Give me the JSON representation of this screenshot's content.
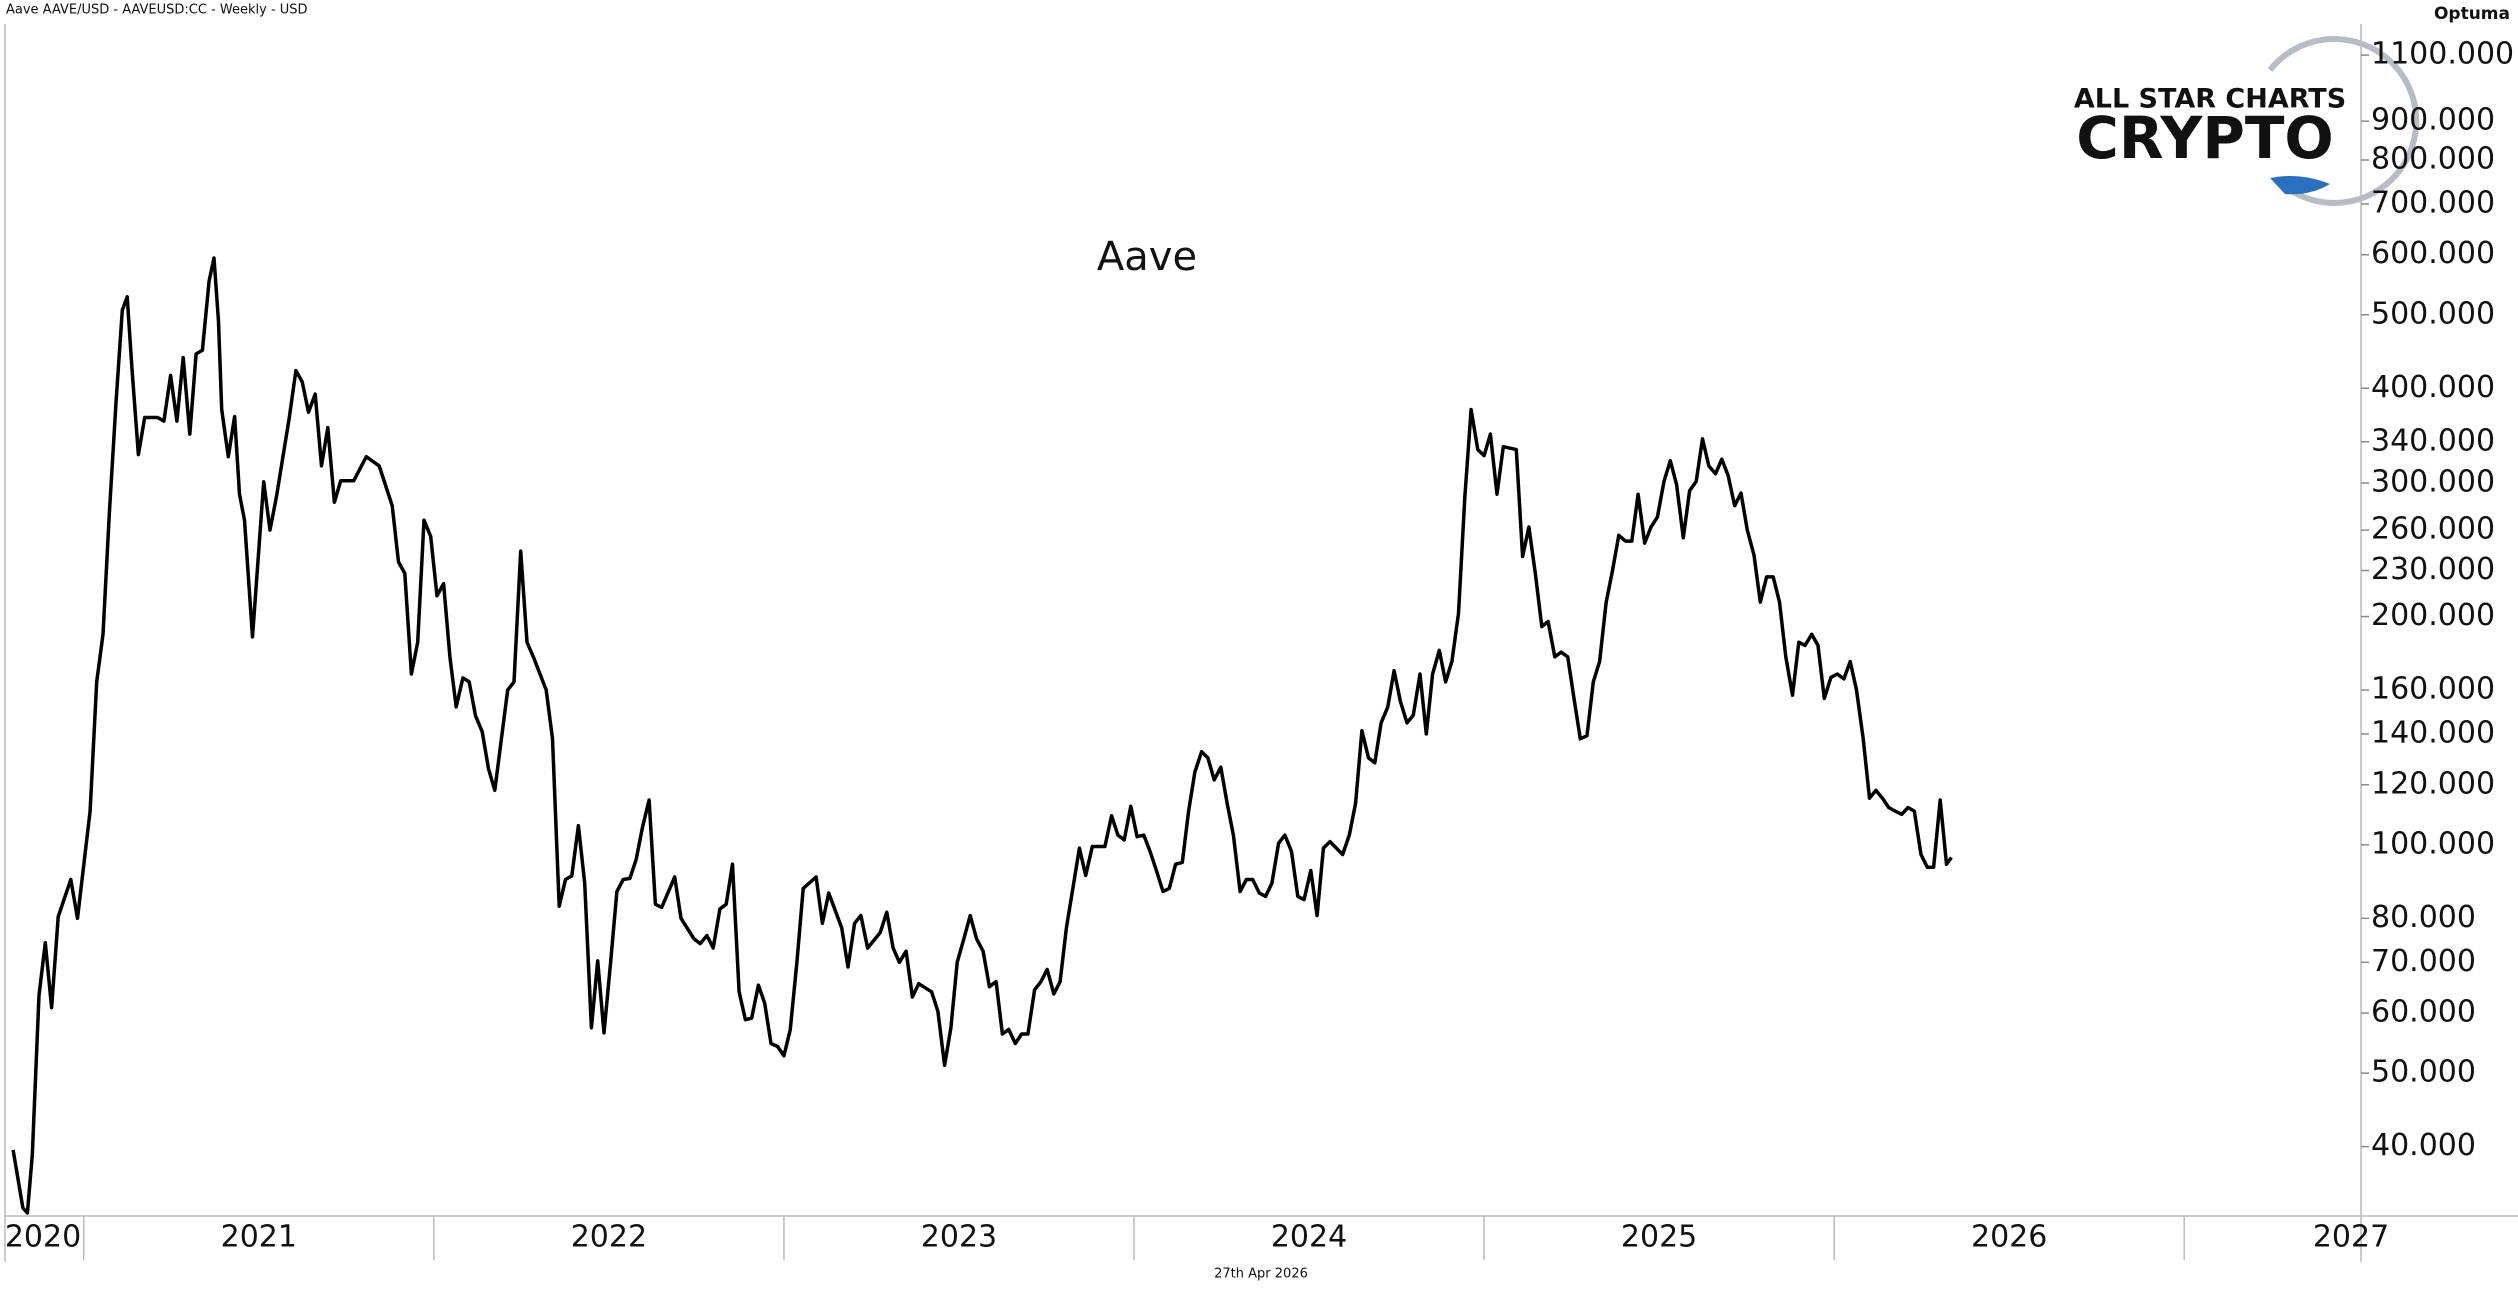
{
  "header": {
    "caption": "Aave AAVE/USD - AAVEUSD:CC - Weekly - USD",
    "brand": "Optuma",
    "date": "27th Apr 2026"
  },
  "logo": {
    "line1": "ALL STAR CHARTS",
    "line2": "CRYPTO"
  },
  "chart_data": {
    "type": "line",
    "title": "Aave",
    "color": "#000000",
    "log_scale": true,
    "xlim": [
      2020.775,
      2027.505
    ],
    "xticks": [
      2020,
      2021,
      2022,
      2023,
      2024,
      2025,
      2026,
      2027
    ],
    "ylim": [
      32.4,
      1209
    ],
    "yticks": [
      {
        "value": 40,
        "label": "40.000"
      },
      {
        "value": 50,
        "label": "50.000"
      },
      {
        "value": 60,
        "label": "60.000"
      },
      {
        "value": 70,
        "label": "70.000"
      },
      {
        "value": 80,
        "label": "80.000"
      },
      {
        "value": 100,
        "label": "100.000"
      },
      {
        "value": 120,
        "label": "120.000"
      },
      {
        "value": 140,
        "label": "140.000"
      },
      {
        "value": 160,
        "label": "160.000"
      },
      {
        "value": 200,
        "label": "200.000"
      },
      {
        "value": 230,
        "label": "230.000"
      },
      {
        "value": 260,
        "label": "260.000"
      },
      {
        "value": 300,
        "label": "300.000"
      },
      {
        "value": 340,
        "label": "340.000"
      },
      {
        "value": 400,
        "label": "400.000"
      },
      {
        "value": 500,
        "label": "500.000"
      },
      {
        "value": 600,
        "label": "600.000"
      },
      {
        "value": 700,
        "label": "700.000"
      },
      {
        "value": 800,
        "label": "800.000"
      },
      {
        "value": 900,
        "label": "900.000"
      },
      {
        "value": 1100,
        "label": "1100.000"
      }
    ],
    "x": [
      2020.798,
      2020.826,
      2020.839,
      2020.853,
      2020.872,
      2020.89,
      2020.908,
      2020.927,
      2020.963,
      2020.982,
      2021.018,
      2021.037,
      2021.055,
      2021.073,
      2021.092,
      2021.11,
      2021.124,
      2021.138,
      2021.156,
      2021.174,
      2021.211,
      2021.229,
      2021.248,
      2021.266,
      2021.284,
      2021.303,
      2021.321,
      2021.339,
      2021.358,
      2021.372,
      2021.385,
      2021.394,
      2021.413,
      2021.431,
      2021.445,
      2021.459,
      2021.482,
      2021.514,
      2021.532,
      2021.55,
      2021.587,
      2021.606,
      2021.624,
      2021.642,
      2021.661,
      2021.679,
      2021.697,
      2021.716,
      2021.734,
      2021.771,
      2021.807,
      2021.844,
      2021.881,
      2021.899,
      2021.917,
      2021.936,
      2021.954,
      2021.972,
      2021.991,
      2022.009,
      2022.028,
      2022.046,
      2022.064,
      2022.083,
      2022.101,
      2022.119,
      2022.138,
      2022.156,
      2022.174,
      2022.193,
      2022.211,
      2022.229,
      2022.248,
      2022.266,
      2022.284,
      2022.321,
      2022.339,
      2022.358,
      2022.376,
      2022.394,
      2022.413,
      2022.431,
      2022.45,
      2022.468,
      2022.486,
      2022.505,
      2022.523,
      2022.541,
      2022.56,
      2022.578,
      2022.596,
      2022.615,
      2022.633,
      2022.651,
      2022.688,
      2022.706,
      2022.743,
      2022.761,
      2022.78,
      2022.798,
      2022.817,
      2022.835,
      2022.853,
      2022.872,
      2022.89,
      2022.908,
      2022.927,
      2022.945,
      2022.963,
      2022.982,
      2023.0,
      2023.018,
      2023.037,
      2023.055,
      2023.092,
      2023.11,
      2023.128,
      2023.165,
      2023.183,
      2023.202,
      2023.22,
      2023.239,
      2023.275,
      2023.294,
      2023.312,
      2023.33,
      2023.349,
      2023.367,
      2023.385,
      2023.422,
      2023.44,
      2023.459,
      2023.477,
      2023.495,
      2023.514,
      2023.532,
      2023.55,
      2023.569,
      2023.587,
      2023.606,
      2023.624,
      2023.642,
      2023.661,
      2023.679,
      2023.697,
      2023.716,
      2023.734,
      2023.752,
      2023.771,
      2023.789,
      2023.807,
      2023.826,
      2023.844,
      2023.862,
      2023.881,
      2023.917,
      2023.936,
      2023.954,
      2023.972,
      2023.991,
      2024.009,
      2024.028,
      2024.046,
      2024.064,
      2024.083,
      2024.101,
      2024.119,
      2024.138,
      2024.156,
      2024.174,
      2024.193,
      2024.211,
      2024.229,
      2024.248,
      2024.266,
      2024.284,
      2024.303,
      2024.321,
      2024.339,
      2024.358,
      2024.376,
      2024.394,
      2024.413,
      2024.431,
      2024.45,
      2024.468,
      2024.486,
      2024.505,
      2024.523,
      2024.541,
      2024.56,
      2024.596,
      2024.615,
      2024.633,
      2024.651,
      2024.67,
      2024.688,
      2024.706,
      2024.725,
      2024.743,
      2024.761,
      2024.78,
      2024.798,
      2024.817,
      2024.835,
      2024.853,
      2024.872,
      2024.89,
      2024.908,
      2024.927,
      2024.945,
      2024.963,
      2024.982,
      2025.0,
      2025.018,
      2025.037,
      2025.055,
      2025.092,
      2025.11,
      2025.128,
      2025.147,
      2025.165,
      2025.183,
      2025.202,
      2025.22,
      2025.239,
      2025.257,
      2025.275,
      2025.294,
      2025.312,
      2025.33,
      2025.349,
      2025.367,
      2025.385,
      2025.404,
      2025.422,
      2025.44,
      2025.459,
      2025.477,
      2025.495,
      2025.514,
      2025.532,
      2025.55,
      2025.569,
      2025.587,
      2025.606,
      2025.624,
      2025.642,
      2025.661,
      2025.679,
      2025.697,
      2025.716,
      2025.734,
      2025.752,
      2025.771,
      2025.789,
      2025.807,
      2025.826,
      2025.844,
      2025.862,
      2025.881,
      2025.899,
      2025.917,
      2025.936,
      2025.954,
      2025.972,
      2025.991,
      2026.009,
      2026.028,
      2026.046,
      2026.064,
      2026.083,
      2026.101,
      2026.119,
      2026.138,
      2026.156,
      2026.174,
      2026.193,
      2026.211,
      2026.229,
      2026.248,
      2026.266,
      2026.284,
      2026.303,
      2026.321,
      2026.335
    ],
    "values": [
      39.6,
      33.2,
      32.7,
      39,
      63.3,
      74.3,
      61,
      80.4,
      90,
      80,
      110.8,
      164,
      189.5,
      273,
      383,
      507,
      528,
      422,
      327,
      366,
      366,
      362,
      416,
      362,
      439,
      348,
      444,
      449,
      554,
      594,
      490,
      375,
      325,
      367,
      290,
      268,
      188,
      301,
      260,
      287,
      366,
      422,
      408,
      372,
      393,
      316,
      355,
      283,
      302,
      302,
      325,
      316,
      280,
      236,
      228,
      168,
      185,
      268,
      255,
      213,
      221,
      177,
      152,
      166,
      164,
      148,
      141,
      126,
      118,
      138,
      160,
      164,
      244,
      185,
      177,
      160,
      138,
      83,
      90,
      91,
      106,
      89,
      57.4,
      70.3,
      56.5,
      70,
      86.8,
      90,
      90.3,
      95.7,
      105.5,
      114.6,
      83.5,
      82.7,
      90.7,
      80,
      75.2,
      74.1,
      75.9,
      73.1,
      82.3,
      83.5,
      94.3,
      64,
      58.8,
      59.1,
      65.3,
      61.8,
      54.7,
      54.2,
      52.7,
      57,
      70,
      87.6,
      90.7,
      78.8,
      86.4,
      77.7,
      69,
      78.8,
      80.7,
      73.1,
      76.6,
      81.5,
      73.1,
      70,
      72.4,
      63,
      65.6,
      64,
      60.3,
      51.2,
      57.4,
      70,
      75.2,
      80.7,
      75.2,
      72.4,
      65,
      66,
      56.3,
      57.1,
      54.7,
      56.3,
      56.3,
      64.4,
      66,
      68.5,
      63.6,
      66,
      77.7,
      88,
      99,
      91.1,
      99.5,
      99.5,
      109.2,
      103,
      101.5,
      112.4,
      102.5,
      103,
      98,
      92.5,
      86.8,
      87.6,
      94.3,
      94.8,
      110.8,
      124.8,
      132.7,
      130.2,
      121.8,
      126.6,
      113.5,
      103,
      86.8,
      90,
      90,
      86.4,
      85.5,
      89,
      100.5,
      103,
      98,
      85.5,
      84.7,
      92.5,
      80.7,
      99,
      101,
      97.1,
      103,
      113.5,
      141.4,
      130.2,
      128.3,
      144.8,
      152,
      169.7,
      154.6,
      144.8,
      148.3,
      168,
      140,
      168,
      180.5,
      164,
      174.5,
      202,
      287,
      375,
      332,
      326,
      348,
      290,
      335,
      332,
      240,
      262.5,
      227,
      194,
      197,
      177,
      179.5,
      177,
      156,
      138,
      139.3,
      164,
      174.5,
      209,
      230,
      256,
      251.5,
      251.5,
      290,
      250,
      262.5,
      270.5,
      301.5,
      321,
      298.5,
      254,
      293,
      301.5,
      343,
      316,
      308.5,
      322.5,
      307,
      280,
      291,
      260,
      241,
      209,
      225.6,
      225.6,
      209,
      177,
      157.5,
      185,
      183.2,
      189.5,
      183.2,
      156,
      166.3,
      168,
      165.5,
      174.5,
      160,
      138,
      115.2,
      118,
      115.2,
      112,
      110.8,
      109.7,
      112,
      110.8,
      97.1,
      93.4,
      93.4,
      114.6,
      94.3,
      96.2
    ]
  }
}
